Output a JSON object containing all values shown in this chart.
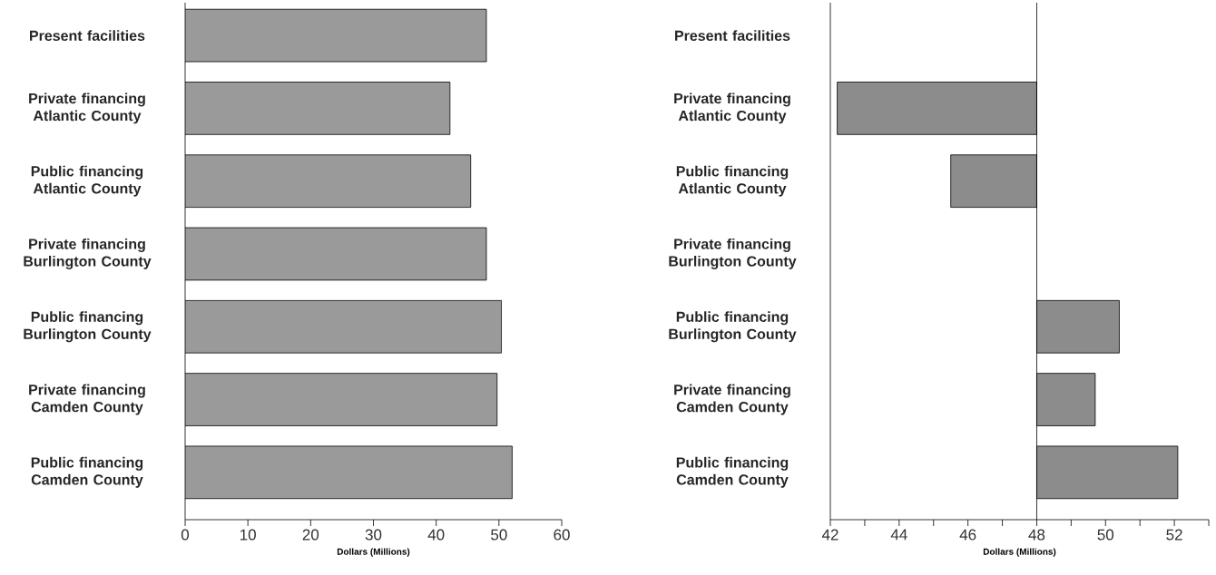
{
  "chart_data": [
    {
      "type": "bar",
      "orientation": "horizontal",
      "categories": [
        "Present facilities",
        "Private financing Atlantic County",
        "Public financing Atlantic County",
        "Private financing Burlington County",
        "Public financing Burlington County",
        "Private financing Camden County",
        "Public financing Camden County"
      ],
      "values": [
        48.0,
        42.2,
        45.5,
        48.0,
        50.4,
        49.7,
        52.1
      ],
      "color": "#9a9a9a",
      "xlabel": "Dollars (Millions)",
      "xlim": [
        0,
        60
      ],
      "xticks": [
        0,
        10,
        20,
        30,
        40,
        50,
        60
      ]
    },
    {
      "type": "bar",
      "orientation": "horizontal",
      "categories": [
        "Present facilities",
        "Private financing Atlantic County",
        "Public financing Atlantic County",
        "Private financing Burlington County",
        "Public financing Burlington County",
        "Private financing Camden County",
        "Public financing Camden County"
      ],
      "base": [
        null,
        48,
        48,
        null,
        48,
        48,
        48
      ],
      "values": [
        null,
        -5.8,
        -2.5,
        null,
        2.4,
        1.7,
        4.1
      ],
      "color": "#8c8c8c",
      "xlabel": "Dollars (Millions)",
      "xlim": [
        42,
        53
      ],
      "xticks": [
        42,
        {
          "value": 43,
          "label": null
        },
        44,
        {
          "value": 45,
          "label": null
        },
        46,
        {
          "value": 47,
          "label": null
        },
        48,
        {
          "value": 49,
          "label": null
        },
        50,
        {
          "value": 51,
          "label": null
        },
        52,
        {
          "value": 53,
          "label": null
        }
      ],
      "ref_lines": [
        {
          "axis": "x",
          "value": 48,
          "color": "#000000"
        }
      ]
    }
  ]
}
